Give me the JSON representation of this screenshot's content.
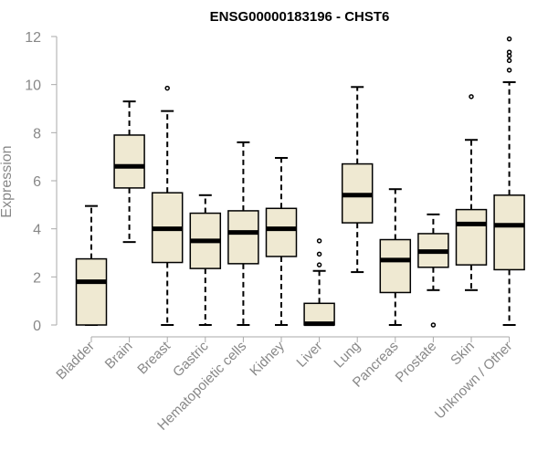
{
  "chart_data": {
    "type": "box",
    "title": "ENSG00000183196 - CHST6",
    "ylabel": "Expression",
    "xlabel": "",
    "ylim": [
      0,
      12
    ],
    "yticks": [
      0,
      2,
      4,
      6,
      8,
      10,
      12
    ],
    "categories": [
      "Bladder",
      "Brain",
      "Breast",
      "Gastric",
      "Hematopoietic cells",
      "Kidney",
      "Liver",
      "Lung",
      "Pancreas",
      "Prostate",
      "Skin",
      "Unknown / Other"
    ],
    "boxes": [
      {
        "whisker_low": 0.0,
        "q1": 0.0,
        "median": 1.8,
        "q3": 2.75,
        "whisker_high": 4.95,
        "outliers": []
      },
      {
        "whisker_low": 3.45,
        "q1": 5.7,
        "median": 6.6,
        "q3": 7.9,
        "whisker_high": 9.3,
        "outliers": []
      },
      {
        "whisker_low": 0.0,
        "q1": 2.6,
        "median": 4.0,
        "q3": 5.5,
        "whisker_high": 8.9,
        "outliers": [
          9.85
        ]
      },
      {
        "whisker_low": 0.0,
        "q1": 2.35,
        "median": 3.5,
        "q3": 4.65,
        "whisker_high": 5.4,
        "outliers": []
      },
      {
        "whisker_low": 0.0,
        "q1": 2.55,
        "median": 3.85,
        "q3": 4.75,
        "whisker_high": 7.6,
        "outliers": []
      },
      {
        "whisker_low": 0.0,
        "q1": 2.85,
        "median": 4.0,
        "q3": 4.85,
        "whisker_high": 6.95,
        "outliers": []
      },
      {
        "whisker_low": 0.0,
        "q1": 0.0,
        "median": 0.05,
        "q3": 0.9,
        "whisker_high": 2.25,
        "outliers": [
          2.5,
          2.95,
          3.5
        ]
      },
      {
        "whisker_low": 2.2,
        "q1": 4.25,
        "median": 5.4,
        "q3": 6.7,
        "whisker_high": 9.9,
        "outliers": []
      },
      {
        "whisker_low": 0.0,
        "q1": 1.35,
        "median": 2.7,
        "q3": 3.55,
        "whisker_high": 5.65,
        "outliers": []
      },
      {
        "whisker_low": 1.45,
        "q1": 2.4,
        "median": 3.05,
        "q3": 3.8,
        "whisker_high": 4.6,
        "outliers": [
          0.0
        ]
      },
      {
        "whisker_low": 1.45,
        "q1": 2.5,
        "median": 4.2,
        "q3": 4.8,
        "whisker_high": 7.7,
        "outliers": [
          9.5
        ]
      },
      {
        "whisker_low": 0.0,
        "q1": 2.3,
        "median": 4.15,
        "q3": 5.4,
        "whisker_high": 10.1,
        "outliers": [
          10.6,
          11.0,
          11.2,
          11.35,
          11.9
        ]
      }
    ],
    "colors": {
      "box_fill": "#efe9d2",
      "box_stroke": "#000000",
      "axis": "#aaaaaa",
      "label": "#888888"
    },
    "grid": false,
    "legend": "none"
  }
}
